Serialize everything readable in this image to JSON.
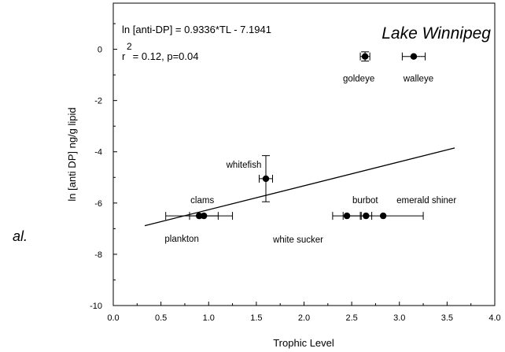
{
  "side_text": "al.",
  "chart_data": {
    "type": "scatter",
    "title": "Lake Winnipeg",
    "xlabel": "Trophic Level",
    "ylabel": "ln [anti DP] ng/g lipid",
    "xlim": [
      0.0,
      4.0
    ],
    "ylim": [
      -10,
      1.8
    ],
    "xticks": [
      0.0,
      0.5,
      1.0,
      1.5,
      2.0,
      2.5,
      3.0,
      3.5,
      4.0
    ],
    "xtick_labels": [
      "0.0",
      "0.5",
      "1.0",
      "1.5",
      "2.0",
      "2.5",
      "3.0",
      "3.5",
      "4.0"
    ],
    "yticks": [
      0,
      -2,
      -4,
      -6,
      -8,
      -10
    ],
    "ytick_labels": [
      "0",
      "-2",
      "-4",
      "-6",
      "-8",
      "-10"
    ],
    "grid": false,
    "equation_text": "ln [anti-DP] = 0.9336*TL - 7.1941",
    "stats_r": "r",
    "stats_sup": "2",
    "stats_rest": " = 0.12, p=0.04",
    "regression": {
      "slope": 0.9336,
      "intercept": -7.1941,
      "x_start": 0.33,
      "x_end": 3.58
    },
    "points": [
      {
        "label": "plankton",
        "x": 0.9,
        "y": -6.5,
        "xerr": 0.35,
        "yerr": 0
      },
      {
        "label": "clams",
        "x": 0.95,
        "y": -6.5,
        "xerr": 0.15,
        "yerr": 0
      },
      {
        "label": "whitefish",
        "x": 1.6,
        "y": -5.05,
        "xerr": 0.07,
        "yerr": 0.9
      },
      {
        "label": "white sucker",
        "x": 2.45,
        "y": -6.5,
        "xerr": 0.15,
        "yerr": 0
      },
      {
        "label": "burbot",
        "x": 2.65,
        "y": -6.5,
        "xerr": 0.06,
        "yerr": 0
      },
      {
        "label": "emerald shiner",
        "x": 2.83,
        "y": -6.5,
        "xerr": 0.42,
        "yerr": 0
      },
      {
        "label": "goldeye",
        "x": 2.64,
        "y": -0.28,
        "xerr": 0.05,
        "yerr": 0.18
      },
      {
        "label": "walleye",
        "x": 3.15,
        "y": -0.28,
        "xerr": 0.12,
        "yerr": 0
      }
    ]
  }
}
